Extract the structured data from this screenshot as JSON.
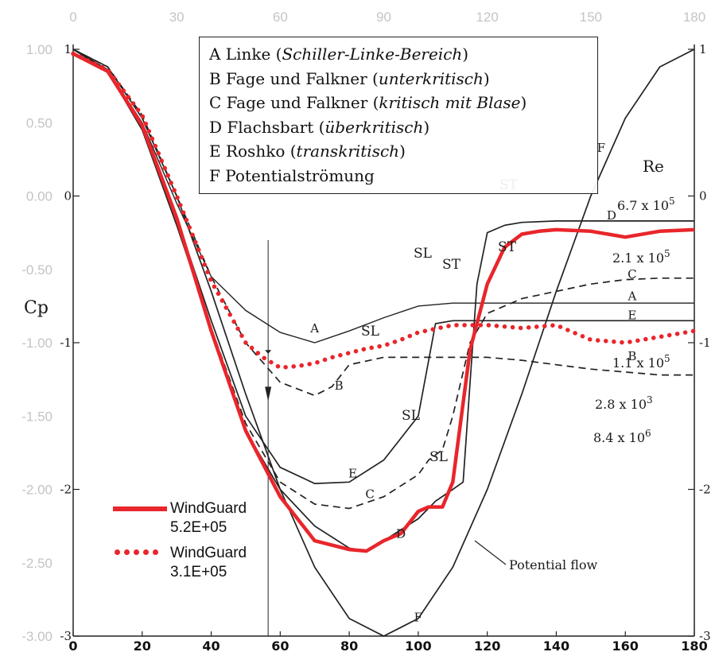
{
  "chart_data": {
    "type": "line",
    "xlabel": "",
    "ylabel": "Cp",
    "xlim": [
      0,
      180
    ],
    "ylim": [
      -3,
      1
    ],
    "top_ticks": [
      "0",
      "30",
      "60",
      "90",
      "120",
      "150",
      "180"
    ],
    "bottom_ticks": [
      "0",
      "20",
      "40",
      "60",
      "80",
      "100",
      "120",
      "140",
      "160",
      "180"
    ],
    "left_ticks": [
      "1.00",
      "0.50",
      "0.00",
      "-0.50",
      "-1.00",
      "-1.50",
      "-2.00",
      "-2.50",
      "-3.00"
    ],
    "inner_left_ticks": [
      "1",
      "0",
      "-1",
      "-2",
      "-3"
    ],
    "right_ticks": [
      "1",
      "0",
      "-1",
      "-2",
      "-3"
    ],
    "legend_entries": [
      {
        "letter": "A",
        "name": "Linke",
        "regime": "Schiller-Linke-Bereich"
      },
      {
        "letter": "B",
        "name": "Fage und Falkner",
        "regime": "unterkritisch"
      },
      {
        "letter": "C",
        "name": "Fage und Falkner",
        "regime": "kritisch mit Blase"
      },
      {
        "letter": "D",
        "name": "Flachsbart",
        "regime": "überkritisch"
      },
      {
        "letter": "E",
        "name": "Roshko",
        "regime": "transkritisch"
      },
      {
        "letter": "F",
        "name": "Potentialströmung",
        "regime": ""
      }
    ],
    "re_header": "Re",
    "re_labels": [
      {
        "text": "6.7 x 10",
        "exp": "5"
      },
      {
        "text": "2.1 x 10",
        "exp": "5"
      },
      {
        "text": "1.1 x 10",
        "exp": "5"
      },
      {
        "text": "2.8 x 10",
        "exp": "3"
      },
      {
        "text": "8.4 x 10",
        "exp": "6"
      }
    ],
    "annotations": {
      "st_top": "ST",
      "sl_a": "SL",
      "st_a": "ST",
      "sl_b": "SL",
      "sl_c": "SL",
      "sl_d": "SL",
      "st_e": "ST",
      "potential_flow": "Potential flow"
    },
    "series": [
      {
        "name": "A",
        "style": "solid-thin",
        "x": [
          0,
          10,
          20,
          30,
          40,
          50,
          60,
          70,
          80,
          90,
          100,
          110,
          120,
          130,
          140,
          150,
          160,
          170,
          180
        ],
        "y": [
          1.0,
          0.86,
          0.5,
          -0.05,
          -0.55,
          -0.78,
          -0.93,
          -1.0,
          -0.92,
          -0.83,
          -0.75,
          -0.73,
          -0.73,
          -0.73,
          -0.73,
          -0.73,
          -0.73,
          -0.73,
          -0.73
        ]
      },
      {
        "name": "B",
        "style": "dashed",
        "x": [
          0,
          10,
          20,
          30,
          40,
          50,
          60,
          70,
          75,
          80,
          90,
          100,
          110,
          120,
          130,
          140,
          150,
          160,
          170,
          180
        ],
        "y": [
          1.0,
          0.88,
          0.55,
          0.0,
          -0.55,
          -1.0,
          -1.27,
          -1.36,
          -1.3,
          -1.15,
          -1.1,
          -1.1,
          -1.1,
          -1.1,
          -1.12,
          -1.15,
          -1.18,
          -1.2,
          -1.22,
          -1.22
        ]
      },
      {
        "name": "C",
        "style": "dashed",
        "x": [
          0,
          10,
          20,
          30,
          40,
          50,
          60,
          70,
          80,
          90,
          100,
          103,
          107,
          110,
          115,
          120,
          130,
          140,
          150,
          160,
          170,
          180
        ],
        "y": [
          1.0,
          0.86,
          0.48,
          -0.15,
          -0.9,
          -1.55,
          -1.95,
          -2.1,
          -2.13,
          -2.05,
          -1.9,
          -1.8,
          -1.73,
          -1.5,
          -1.0,
          -0.8,
          -0.7,
          -0.65,
          -0.6,
          -0.57,
          -0.56,
          -0.56
        ]
      },
      {
        "name": "D",
        "style": "solid",
        "x": [
          0,
          10,
          20,
          30,
          40,
          50,
          60,
          70,
          80,
          85,
          90,
          100,
          105,
          110,
          113,
          117,
          120,
          125,
          130,
          140,
          150,
          160,
          170,
          180
        ],
        "y": [
          1.0,
          0.85,
          0.45,
          -0.2,
          -0.9,
          -1.6,
          -2.0,
          -2.25,
          -2.4,
          -2.42,
          -2.35,
          -2.2,
          -2.08,
          -2.0,
          -1.95,
          -0.6,
          -0.25,
          -0.2,
          -0.18,
          -0.17,
          -0.17,
          -0.17,
          -0.17,
          -0.17
        ]
      },
      {
        "name": "E",
        "style": "solid",
        "x": [
          0,
          10,
          20,
          30,
          40,
          50,
          60,
          70,
          80,
          90,
          100,
          105,
          110,
          120,
          130,
          140,
          150,
          160,
          170,
          180
        ],
        "y": [
          1.0,
          0.86,
          0.47,
          -0.15,
          -0.85,
          -1.5,
          -1.85,
          -1.96,
          -1.95,
          -1.8,
          -1.5,
          -0.87,
          -0.85,
          -0.85,
          -0.85,
          -0.85,
          -0.85,
          -0.85,
          -0.85,
          -0.85
        ]
      },
      {
        "name": "F",
        "style": "solid",
        "x": [
          0,
          10,
          20,
          30,
          40,
          50,
          60,
          70,
          80,
          90,
          100,
          110,
          120,
          130,
          140,
          150,
          160,
          170,
          180
        ],
        "y": [
          1.0,
          0.88,
          0.53,
          0.0,
          -0.65,
          -1.35,
          -2.0,
          -2.53,
          -2.88,
          -3.0,
          -2.88,
          -2.53,
          -2.0,
          -1.35,
          -0.65,
          0.0,
          0.53,
          0.88,
          1.0
        ]
      },
      {
        "name": "WindGuard 5.2E+05",
        "style": "red-solid",
        "x": [
          0,
          10,
          20,
          30,
          40,
          50,
          60,
          70,
          80,
          85,
          90,
          95,
          100,
          103,
          107,
          110,
          115,
          120,
          125,
          130,
          135,
          140,
          150,
          160,
          170,
          180
        ],
        "y": [
          0.97,
          0.85,
          0.48,
          -0.15,
          -0.92,
          -1.6,
          -2.05,
          -2.35,
          -2.41,
          -2.42,
          -2.35,
          -2.3,
          -2.15,
          -2.12,
          -2.12,
          -1.95,
          -1.05,
          -0.6,
          -0.35,
          -0.26,
          -0.24,
          -0.23,
          -0.24,
          -0.28,
          -0.24,
          -0.23
        ]
      },
      {
        "name": "WindGuard 3.1E+05",
        "style": "red-dotted",
        "x": [
          0,
          10,
          20,
          30,
          40,
          50,
          55,
          60,
          65,
          70,
          75,
          80,
          85,
          90,
          95,
          100,
          110,
          120,
          130,
          140,
          150,
          160,
          170,
          180
        ],
        "y": [
          0.97,
          0.86,
          0.55,
          0.0,
          -0.58,
          -1.0,
          -1.1,
          -1.17,
          -1.16,
          -1.14,
          -1.1,
          -1.07,
          -1.04,
          -1.02,
          -0.98,
          -0.93,
          -0.88,
          -0.88,
          -0.9,
          -0.88,
          -0.98,
          -1.0,
          -0.96,
          -0.92
        ]
      }
    ],
    "grid": false,
    "legend": "top-center"
  },
  "windguard_legend": [
    {
      "label_line1": "WindGuard",
      "label_line2": "5.2E+05",
      "style": "solid"
    },
    {
      "label_line1": "WindGuard",
      "label_line2": "3.1E+05",
      "style": "dotted"
    }
  ],
  "colors": {
    "windguard": "#e8262b",
    "reference": "#222222",
    "gray_tick": "#c4c4c4"
  }
}
